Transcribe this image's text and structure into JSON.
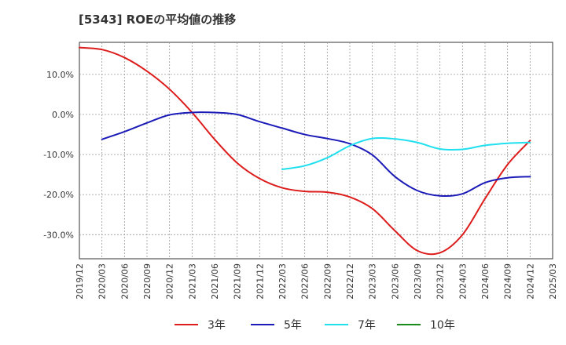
{
  "chart_data": {
    "type": "line",
    "title": "[5343]  ROEの平均値の推移",
    "xlabel": "",
    "ylabel": "",
    "x_ticks": [
      "2019/12",
      "2020/03",
      "2020/06",
      "2020/09",
      "2020/12",
      "2021/03",
      "2021/06",
      "2021/09",
      "2021/12",
      "2022/03",
      "2022/06",
      "2022/09",
      "2022/12",
      "2023/03",
      "2023/06",
      "2023/09",
      "2023/12",
      "2024/03",
      "2024/06",
      "2024/09",
      "2024/12",
      "2025/03"
    ],
    "ylim": [
      -36,
      18
    ],
    "y_ticks": [
      10,
      0,
      -10,
      -20,
      -30
    ],
    "y_tick_labels": [
      "10.0%",
      "0.0%",
      "-10.0%",
      "-20.0%",
      "-30.0%"
    ],
    "grid": true,
    "legend_position": "bottom",
    "series": [
      {
        "name": "3年",
        "color": "#dd1c1c",
        "points": [
          [
            "2019/12",
            16.7
          ],
          [
            "2020/03",
            16.2
          ],
          [
            "2020/06",
            14.2
          ],
          [
            "2020/09",
            10.8
          ],
          [
            "2020/12",
            6.3
          ],
          [
            "2021/03",
            0.5
          ],
          [
            "2021/06",
            -6.2
          ],
          [
            "2021/09",
            -12.1
          ],
          [
            "2021/12",
            -16.0
          ],
          [
            "2022/03",
            -18.3
          ],
          [
            "2022/06",
            -19.2
          ],
          [
            "2022/09",
            -19.4
          ],
          [
            "2022/12",
            -20.6
          ],
          [
            "2023/03",
            -23.5
          ],
          [
            "2023/06",
            -29.0
          ],
          [
            "2023/09",
            -34.0
          ],
          [
            "2023/12",
            -34.5
          ],
          [
            "2024/03",
            -30.0
          ],
          [
            "2024/06",
            -21.0
          ],
          [
            "2024/09",
            -12.5
          ],
          [
            "2024/12",
            -6.5
          ]
        ]
      },
      {
        "name": "5年",
        "color": "#1a1ab8",
        "points": [
          [
            "2020/03",
            -6.2
          ],
          [
            "2020/06",
            -4.3
          ],
          [
            "2020/09",
            -2.1
          ],
          [
            "2020/12",
            -0.1
          ],
          [
            "2021/03",
            0.5
          ],
          [
            "2021/06",
            0.5
          ],
          [
            "2021/09",
            0.0
          ],
          [
            "2021/12",
            -1.8
          ],
          [
            "2022/03",
            -3.4
          ],
          [
            "2022/06",
            -5.0
          ],
          [
            "2022/09",
            -6.0
          ],
          [
            "2022/12",
            -7.3
          ],
          [
            "2023/03",
            -10.1
          ],
          [
            "2023/06",
            -15.5
          ],
          [
            "2023/09",
            -19.0
          ],
          [
            "2023/12",
            -20.3
          ],
          [
            "2024/03",
            -19.8
          ],
          [
            "2024/06",
            -17.0
          ],
          [
            "2024/09",
            -15.8
          ],
          [
            "2024/12",
            -15.5
          ]
        ]
      },
      {
        "name": "7年",
        "color": "#20e0f0",
        "points": [
          [
            "2022/03",
            -13.7
          ],
          [
            "2022/06",
            -12.8
          ],
          [
            "2022/09",
            -10.8
          ],
          [
            "2022/12",
            -7.8
          ],
          [
            "2023/03",
            -6.0
          ],
          [
            "2023/06",
            -6.1
          ],
          [
            "2023/09",
            -7.0
          ],
          [
            "2023/12",
            -8.6
          ],
          [
            "2024/03",
            -8.7
          ],
          [
            "2024/06",
            -7.7
          ],
          [
            "2024/09",
            -7.2
          ],
          [
            "2024/12",
            -7.0
          ]
        ]
      },
      {
        "name": "10年",
        "color": "#1a8c1a",
        "points": []
      }
    ]
  }
}
